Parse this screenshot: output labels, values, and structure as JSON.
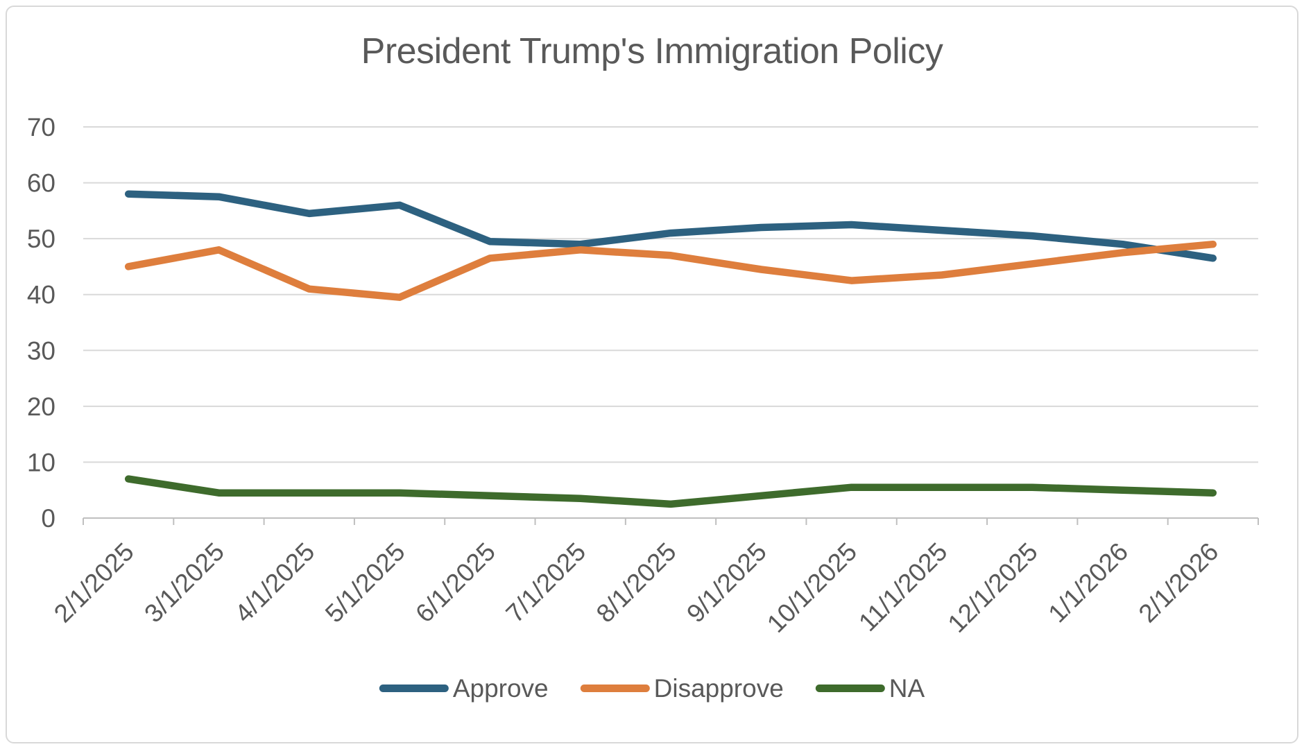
{
  "title": "President Trump's Immigration Policy",
  "colors": {
    "approve": "#2D6180",
    "disapprove": "#DE7E3D",
    "na": "#3E6B2C",
    "gridline": "#D9D9D9",
    "axis_line": "#BFBFBF",
    "text": "#595959",
    "border": "#D9D9D9",
    "background": "#FFFFFF"
  },
  "chart_data": {
    "type": "line",
    "title": "President Trump's Immigration Policy",
    "categories": [
      "2/1/2025",
      "3/1/2025",
      "4/1/2025",
      "5/1/2025",
      "6/1/2025",
      "7/1/2025",
      "8/1/2025",
      "9/1/2025",
      "10/1/2025",
      "11/1/2025",
      "12/1/2025",
      "1/1/2026",
      "2/1/2026"
    ],
    "series": [
      {
        "name": "Approve",
        "color": "#2D6180",
        "values": [
          58,
          57.5,
          54.5,
          56,
          49.5,
          49,
          51,
          52,
          52.5,
          51.5,
          50.5,
          49,
          46.5
        ]
      },
      {
        "name": "Disapprove",
        "color": "#DE7E3D",
        "values": [
          45,
          48,
          41,
          39.5,
          46.5,
          48,
          47,
          44.5,
          42.5,
          43.5,
          45.5,
          47.5,
          49
        ]
      },
      {
        "name": "NA",
        "color": "#3E6B2C",
        "values": [
          7,
          4.5,
          4.5,
          4.5,
          4,
          3.5,
          2.5,
          4,
          5.5,
          5.5,
          5.5,
          5,
          4.5
        ]
      }
    ],
    "xlabel": "",
    "ylabel": "",
    "ylim": [
      0,
      70
    ],
    "yticks": [
      0,
      10,
      20,
      30,
      40,
      50,
      60,
      70
    ],
    "grid": "horizontal",
    "legend_position": "bottom",
    "x_label_rotation_deg": 45
  },
  "legend": {
    "items": [
      {
        "label": "Approve"
      },
      {
        "label": "Disapprove"
      },
      {
        "label": "NA"
      }
    ]
  }
}
